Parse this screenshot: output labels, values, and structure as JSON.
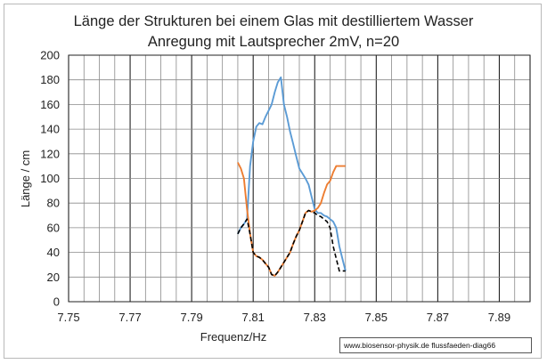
{
  "chart_data": {
    "type": "line",
    "title": "Länge der Strukturen  bei einem Glas mit destilliertem Wasser",
    "subtitle": "Anregung mit Lautsprecher 2mV, n=20",
    "xlabel": "Frequenz/Hz",
    "ylabel": "Länge / cm",
    "xlim": [
      7.75,
      7.9
    ],
    "ylim": [
      0,
      200
    ],
    "x_ticks": [
      "7.75",
      "7.77",
      "7.79",
      "7.81",
      "7.83",
      "7.85",
      "7.87",
      "7.89"
    ],
    "y_ticks": [
      "0",
      "20",
      "40",
      "60",
      "80",
      "100",
      "120",
      "140",
      "160",
      "180",
      "200"
    ],
    "grid": true,
    "legend": "none",
    "series": [
      {
        "color": "#5b9bd5",
        "x": [
          7.805,
          7.806,
          7.807,
          7.808,
          7.809,
          7.81,
          7.811,
          7.812,
          7.813,
          7.814,
          7.815,
          7.816,
          7.817,
          7.818,
          7.819,
          7.82,
          7.821,
          7.822,
          7.823,
          7.824,
          7.825,
          7.826,
          7.827,
          7.828,
          7.829,
          7.83,
          7.831,
          7.832,
          7.833,
          7.834,
          7.835,
          7.836,
          7.837,
          7.838,
          7.839,
          7.84
        ],
        "y": [
          55,
          60,
          63,
          67,
          110,
          130,
          142,
          145,
          144,
          150,
          155,
          160,
          170,
          178,
          182,
          160,
          150,
          138,
          128,
          118,
          108,
          104,
          100,
          95,
          85,
          75,
          72,
          72,
          70,
          69,
          67,
          65,
          60,
          45,
          35,
          25
        ]
      },
      {
        "color": "#ed7d31",
        "x": [
          7.805,
          7.806,
          7.807,
          7.808,
          7.809,
          7.81,
          7.811,
          7.812,
          7.813,
          7.814,
          7.815,
          7.816,
          7.817,
          7.818,
          7.819,
          7.82,
          7.821,
          7.822,
          7.823,
          7.824,
          7.825,
          7.826,
          7.827,
          7.828,
          7.829,
          7.83,
          7.831,
          7.832,
          7.833,
          7.834,
          7.835,
          7.836,
          7.837,
          7.838,
          7.839,
          7.84
        ],
        "y": [
          113,
          108,
          100,
          75,
          55,
          40,
          37,
          36,
          34,
          31,
          28,
          22,
          21,
          24,
          28,
          32,
          36,
          40,
          47,
          53,
          58,
          65,
          72,
          74,
          73,
          74,
          76,
          80,
          88,
          95,
          98,
          105,
          110,
          110,
          110,
          110
        ]
      },
      {
        "color": "#000000",
        "dash": "dashed",
        "x": [
          7.805,
          7.806,
          7.807,
          7.808,
          7.809,
          7.81,
          7.811,
          7.812,
          7.813,
          7.814,
          7.815,
          7.816,
          7.817,
          7.818,
          7.819,
          7.82,
          7.821,
          7.822,
          7.823,
          7.824,
          7.825,
          7.826,
          7.827,
          7.828,
          7.829,
          7.83,
          7.831,
          7.832,
          7.833,
          7.834,
          7.835,
          7.836,
          7.837,
          7.838,
          7.839,
          7.84
        ],
        "y": [
          55,
          60,
          63,
          67,
          55,
          40,
          37,
          36,
          34,
          31,
          28,
          22,
          21,
          24,
          28,
          32,
          36,
          40,
          47,
          53,
          58,
          65,
          72,
          74,
          73,
          72,
          70,
          69,
          67,
          65,
          60,
          45,
          35,
          25,
          25,
          25
        ]
      }
    ]
  },
  "watermark": "www.biosensor-physik.de  flussfaeden-diag66"
}
